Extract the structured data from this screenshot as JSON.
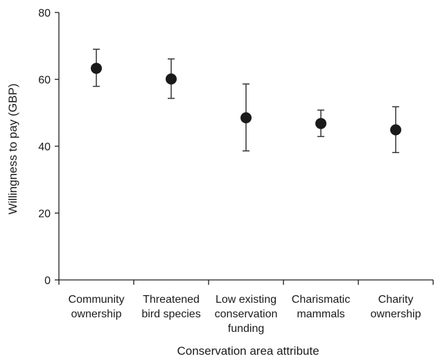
{
  "chart_data": {
    "type": "scatter",
    "title": "",
    "xlabel": "Conservation area attribute",
    "ylabel": "Willingness to pay (GBP)",
    "ylim": [
      0,
      80
    ],
    "yticks": [
      0,
      20,
      40,
      60,
      80
    ],
    "grid": false,
    "categories": [
      [
        "Community",
        "ownership"
      ],
      [
        "Threatened",
        "bird species"
      ],
      [
        "Low existing",
        "conservation",
        "funding"
      ],
      [
        "Charismatic",
        "mammals"
      ],
      [
        "Charity",
        "ownership"
      ]
    ],
    "series": [
      {
        "values": [
          63.3,
          60.1,
          48.5,
          46.8,
          44.9
        ],
        "error_low": [
          57.9,
          54.3,
          38.6,
          42.9,
          38.1
        ],
        "error_high": [
          69.0,
          66.1,
          58.6,
          50.8,
          51.8
        ]
      }
    ],
    "colors": {
      "marker": "#1a1a1a",
      "axis": "#1a1a1a",
      "errorbar": "#333333"
    }
  }
}
